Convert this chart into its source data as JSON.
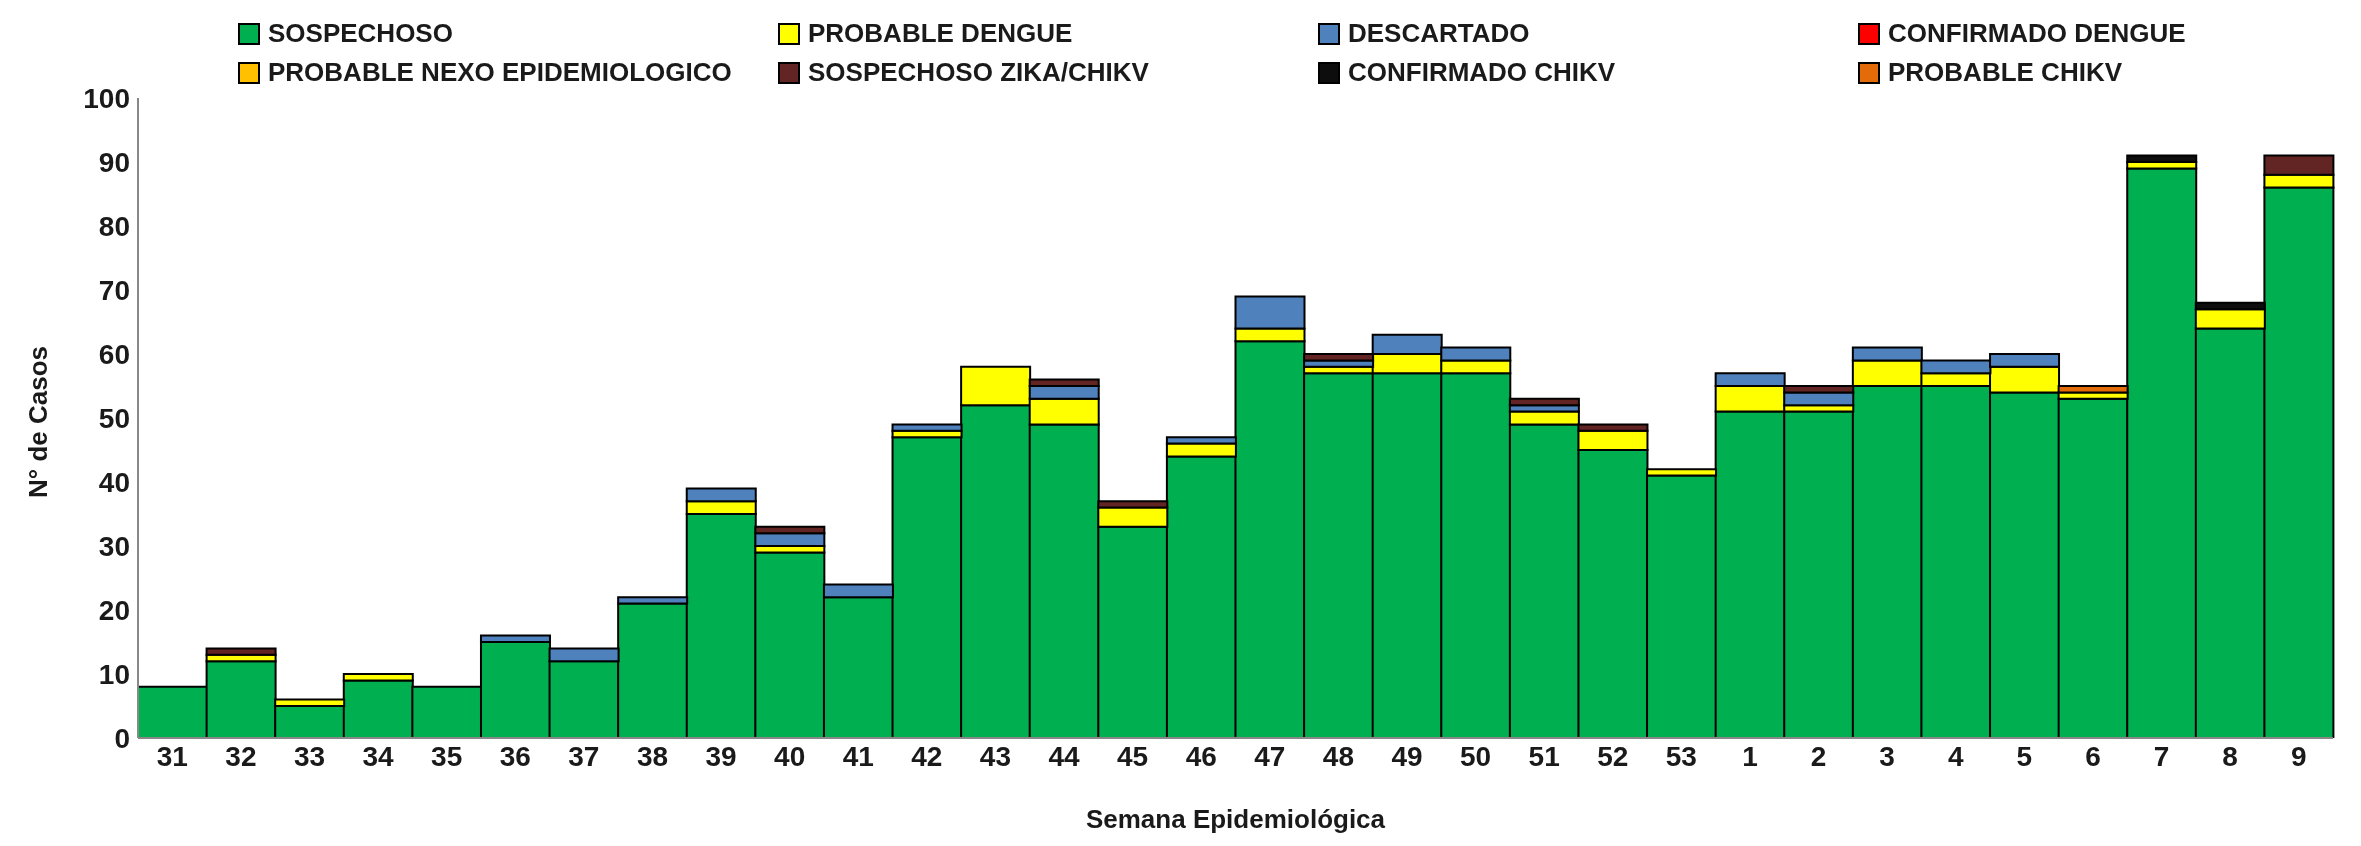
{
  "chart_data": {
    "type": "bar",
    "stacked": true,
    "xlabel": "Semana Epidemiológica",
    "ylabel": "N° de Casos",
    "categories": [
      "31",
      "32",
      "33",
      "34",
      "35",
      "36",
      "37",
      "38",
      "39",
      "40",
      "41",
      "42",
      "43",
      "44",
      "45",
      "46",
      "47",
      "48",
      "49",
      "50",
      "51",
      "52",
      "53",
      "1",
      "2",
      "3",
      "4",
      "5",
      "6",
      "7",
      "8",
      "9"
    ],
    "series": [
      {
        "name": "SOSPECHOSO",
        "color": "#00b050",
        "values": [
          8,
          12,
          5,
          9,
          8,
          15,
          12,
          21,
          35,
          29,
          22,
          47,
          52,
          49,
          33,
          44,
          62,
          57,
          57,
          57,
          49,
          45,
          41,
          51,
          51,
          55,
          55,
          54,
          53,
          89,
          64,
          86
        ]
      },
      {
        "name": "PROBABLE DENGUE",
        "color": "#ffff00",
        "values": [
          0,
          1,
          1,
          1,
          0,
          0,
          0,
          0,
          2,
          1,
          0,
          1,
          6,
          4,
          3,
          2,
          2,
          1,
          3,
          2,
          2,
          3,
          1,
          4,
          1,
          4,
          2,
          4,
          1,
          1,
          3,
          2
        ]
      },
      {
        "name": "DESCARTADO",
        "color": "#4f81bd",
        "values": [
          0,
          0,
          0,
          0,
          0,
          1,
          2,
          1,
          2,
          2,
          2,
          1,
          0,
          2,
          0,
          1,
          5,
          1,
          3,
          2,
          1,
          0,
          0,
          2,
          2,
          2,
          2,
          2,
          0,
          0,
          0,
          0
        ]
      },
      {
        "name": "CONFIRMADO DENGUE",
        "color": "#ff0000",
        "values": [
          0,
          0,
          0,
          0,
          0,
          0,
          0,
          0,
          0,
          0,
          0,
          0,
          0,
          0,
          0,
          0,
          0,
          0,
          0,
          0,
          0,
          0,
          0,
          0,
          0,
          0,
          0,
          0,
          0,
          0,
          0,
          0
        ]
      },
      {
        "name": "PROBABLE NEXO EPIDEMIOLOGICO",
        "color": "#ffc000",
        "values": [
          0,
          0,
          0,
          0,
          0,
          0,
          0,
          0,
          0,
          0,
          0,
          0,
          0,
          0,
          0,
          0,
          0,
          0,
          0,
          0,
          0,
          0,
          0,
          0,
          0,
          0,
          0,
          0,
          0,
          0,
          0,
          0
        ]
      },
      {
        "name": "SOSPECHOSO ZIKA/CHIKV",
        "color": "#632523",
        "values": [
          0,
          1,
          0,
          0,
          0,
          0,
          0,
          0,
          0,
          1,
          0,
          0,
          0,
          1,
          1,
          0,
          0,
          1,
          0,
          0,
          1,
          1,
          0,
          0,
          1,
          0,
          0,
          0,
          0,
          0,
          0,
          3
        ]
      },
      {
        "name": "CONFIRMADO CHIKV",
        "color": "#0d0d0d",
        "values": [
          0,
          0,
          0,
          0,
          0,
          0,
          0,
          0,
          0,
          0,
          0,
          0,
          0,
          0,
          0,
          0,
          0,
          0,
          0,
          0,
          0,
          0,
          0,
          0,
          0,
          0,
          0,
          0,
          0,
          1,
          1,
          0
        ]
      },
      {
        "name": "PROBABLE CHIKV",
        "color": "#e36c09",
        "values": [
          0,
          0,
          0,
          0,
          0,
          0,
          0,
          0,
          0,
          0,
          0,
          0,
          0,
          0,
          0,
          0,
          0,
          0,
          0,
          0,
          0,
          0,
          0,
          0,
          0,
          0,
          0,
          0,
          1,
          0,
          0,
          0
        ]
      }
    ],
    "ylim": [
      0,
      100
    ],
    "yticks": [
      0,
      10,
      20,
      30,
      40,
      50,
      60,
      70,
      80,
      90,
      100
    ],
    "grid": false,
    "legend": "top"
  }
}
